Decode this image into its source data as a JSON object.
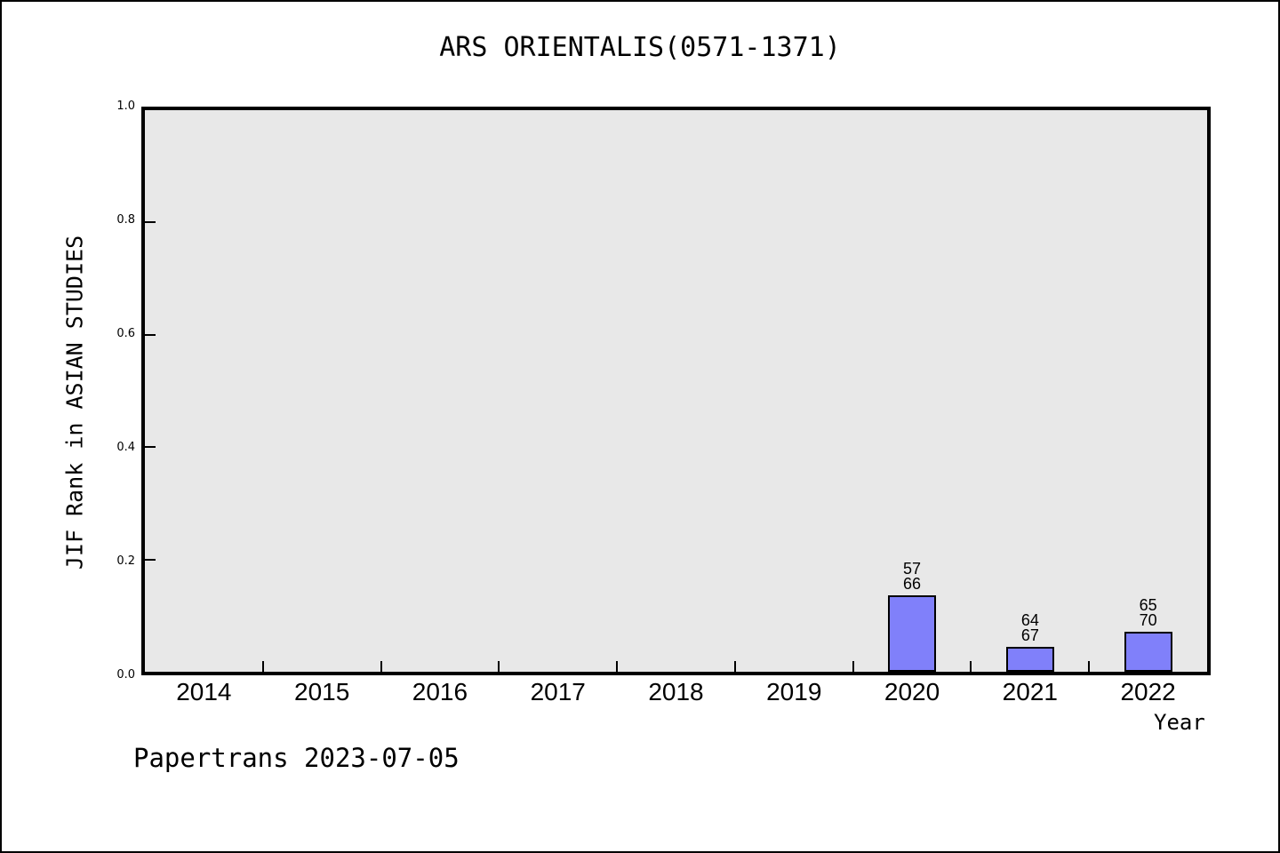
{
  "page": {
    "background_color": "#ffffff",
    "frame_border_color": "#000000"
  },
  "footer": {
    "text": "Papertrans 2023-07-05"
  },
  "chart_data": {
    "type": "bar",
    "title": "ARS ORIENTALIS(0571-1371)",
    "xlabel": "Year",
    "ylabel": "JIF Rank in ASIAN STUDIES",
    "categories": [
      "2014",
      "2015",
      "2016",
      "2017",
      "2018",
      "2019",
      "2020",
      "2021",
      "2022"
    ],
    "values": [
      null,
      null,
      null,
      null,
      null,
      null,
      0.136,
      0.045,
      0.071
    ],
    "bar_annotations": [
      null,
      null,
      null,
      null,
      null,
      null,
      [
        "57",
        "66"
      ],
      [
        "64",
        "67"
      ],
      [
        "65",
        "70"
      ]
    ],
    "ylim": [
      0.0,
      1.0
    ],
    "yticks": [
      "0.0",
      "0.2",
      "0.4",
      "0.6",
      "0.8",
      "1.0"
    ],
    "grid": false,
    "legend": "none",
    "tick_direction": "in",
    "xticks_between_categories": true,
    "colors": {
      "bar_fill": "#8080FA",
      "bar_edge": "#000000",
      "plot_background": "#E8E8E8",
      "axis": "#000000",
      "text": "#000000"
    }
  }
}
